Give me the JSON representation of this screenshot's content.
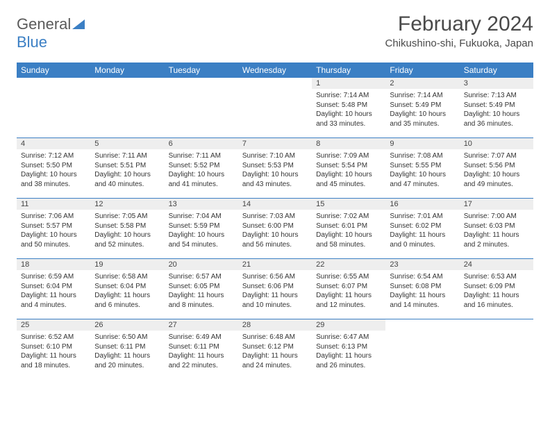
{
  "logo": {
    "text1": "General",
    "text2": "Blue"
  },
  "title": "February 2024",
  "location": "Chikushino-shi, Fukuoka, Japan",
  "colors": {
    "header_bg": "#3b7fc4",
    "header_text": "#ffffff",
    "daynum_bg": "#eeeeee",
    "border": "#3b7fc4",
    "text": "#333333",
    "title_text": "#4a4a4a",
    "logo_gray": "#5a5a5a",
    "logo_blue": "#3b7fc4"
  },
  "weekdays": [
    "Sunday",
    "Monday",
    "Tuesday",
    "Wednesday",
    "Thursday",
    "Friday",
    "Saturday"
  ],
  "labels": {
    "sunrise": "Sunrise: ",
    "sunset": "Sunset: ",
    "daylight": "Daylight: "
  },
  "weeks": [
    [
      {
        "empty": true
      },
      {
        "empty": true
      },
      {
        "empty": true
      },
      {
        "empty": true
      },
      {
        "num": "1",
        "sunrise": "7:14 AM",
        "sunset": "5:48 PM",
        "daylight": "10 hours and 33 minutes."
      },
      {
        "num": "2",
        "sunrise": "7:14 AM",
        "sunset": "5:49 PM",
        "daylight": "10 hours and 35 minutes."
      },
      {
        "num": "3",
        "sunrise": "7:13 AM",
        "sunset": "5:49 PM",
        "daylight": "10 hours and 36 minutes."
      }
    ],
    [
      {
        "num": "4",
        "sunrise": "7:12 AM",
        "sunset": "5:50 PM",
        "daylight": "10 hours and 38 minutes."
      },
      {
        "num": "5",
        "sunrise": "7:11 AM",
        "sunset": "5:51 PM",
        "daylight": "10 hours and 40 minutes."
      },
      {
        "num": "6",
        "sunrise": "7:11 AM",
        "sunset": "5:52 PM",
        "daylight": "10 hours and 41 minutes."
      },
      {
        "num": "7",
        "sunrise": "7:10 AM",
        "sunset": "5:53 PM",
        "daylight": "10 hours and 43 minutes."
      },
      {
        "num": "8",
        "sunrise": "7:09 AM",
        "sunset": "5:54 PM",
        "daylight": "10 hours and 45 minutes."
      },
      {
        "num": "9",
        "sunrise": "7:08 AM",
        "sunset": "5:55 PM",
        "daylight": "10 hours and 47 minutes."
      },
      {
        "num": "10",
        "sunrise": "7:07 AM",
        "sunset": "5:56 PM",
        "daylight": "10 hours and 49 minutes."
      }
    ],
    [
      {
        "num": "11",
        "sunrise": "7:06 AM",
        "sunset": "5:57 PM",
        "daylight": "10 hours and 50 minutes."
      },
      {
        "num": "12",
        "sunrise": "7:05 AM",
        "sunset": "5:58 PM",
        "daylight": "10 hours and 52 minutes."
      },
      {
        "num": "13",
        "sunrise": "7:04 AM",
        "sunset": "5:59 PM",
        "daylight": "10 hours and 54 minutes."
      },
      {
        "num": "14",
        "sunrise": "7:03 AM",
        "sunset": "6:00 PM",
        "daylight": "10 hours and 56 minutes."
      },
      {
        "num": "15",
        "sunrise": "7:02 AM",
        "sunset": "6:01 PM",
        "daylight": "10 hours and 58 minutes."
      },
      {
        "num": "16",
        "sunrise": "7:01 AM",
        "sunset": "6:02 PM",
        "daylight": "11 hours and 0 minutes."
      },
      {
        "num": "17",
        "sunrise": "7:00 AM",
        "sunset": "6:03 PM",
        "daylight": "11 hours and 2 minutes."
      }
    ],
    [
      {
        "num": "18",
        "sunrise": "6:59 AM",
        "sunset": "6:04 PM",
        "daylight": "11 hours and 4 minutes."
      },
      {
        "num": "19",
        "sunrise": "6:58 AM",
        "sunset": "6:04 PM",
        "daylight": "11 hours and 6 minutes."
      },
      {
        "num": "20",
        "sunrise": "6:57 AM",
        "sunset": "6:05 PM",
        "daylight": "11 hours and 8 minutes."
      },
      {
        "num": "21",
        "sunrise": "6:56 AM",
        "sunset": "6:06 PM",
        "daylight": "11 hours and 10 minutes."
      },
      {
        "num": "22",
        "sunrise": "6:55 AM",
        "sunset": "6:07 PM",
        "daylight": "11 hours and 12 minutes."
      },
      {
        "num": "23",
        "sunrise": "6:54 AM",
        "sunset": "6:08 PM",
        "daylight": "11 hours and 14 minutes."
      },
      {
        "num": "24",
        "sunrise": "6:53 AM",
        "sunset": "6:09 PM",
        "daylight": "11 hours and 16 minutes."
      }
    ],
    [
      {
        "num": "25",
        "sunrise": "6:52 AM",
        "sunset": "6:10 PM",
        "daylight": "11 hours and 18 minutes."
      },
      {
        "num": "26",
        "sunrise": "6:50 AM",
        "sunset": "6:11 PM",
        "daylight": "11 hours and 20 minutes."
      },
      {
        "num": "27",
        "sunrise": "6:49 AM",
        "sunset": "6:11 PM",
        "daylight": "11 hours and 22 minutes."
      },
      {
        "num": "28",
        "sunrise": "6:48 AM",
        "sunset": "6:12 PM",
        "daylight": "11 hours and 24 minutes."
      },
      {
        "num": "29",
        "sunrise": "6:47 AM",
        "sunset": "6:13 PM",
        "daylight": "11 hours and 26 minutes."
      },
      {
        "empty": true
      },
      {
        "empty": true
      }
    ]
  ]
}
